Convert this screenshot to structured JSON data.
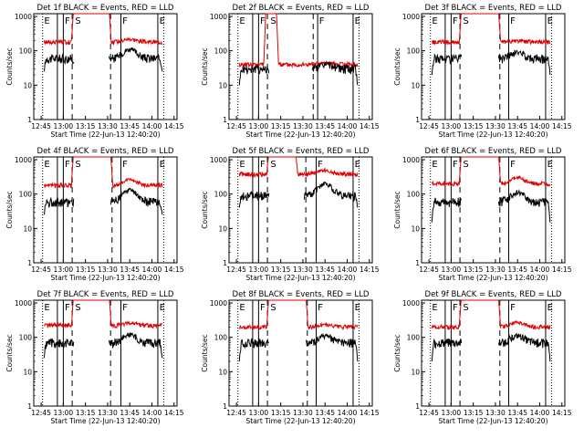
{
  "colors": {
    "events": "#000000",
    "lld": "#e00000",
    "axis": "#000000",
    "background": "#ffffff"
  },
  "common": {
    "xticks": [
      "12:45",
      "13:00",
      "13:15",
      "13:30",
      "13:45",
      "14:00",
      "14:15"
    ],
    "yticks": [
      "1",
      "10",
      "100",
      "1000"
    ],
    "ylabel": "Counts/sec",
    "xlabel": "Start Time (22-Jun-13 12:40:20)",
    "xlim": [
      "12:40",
      "14:17"
    ],
    "ylim": [
      1,
      1200
    ],
    "yscale": "log",
    "marker_labels": [
      "E",
      "F",
      "S",
      "F",
      "E"
    ]
  },
  "chart_data": [
    {
      "type": "line",
      "title": "Det 1f BLACK = Events, RED = LLD",
      "mark_times": [
        "12:46",
        "12:56",
        "13:00",
        "13:06",
        "13:32",
        "13:39",
        "14:04",
        "14:08"
      ],
      "base_events": 60,
      "base_lld": 180,
      "events_peak": 110,
      "lld_peak": 220,
      "lld_sat_start": "13:07",
      "lld_sat_end": "13:31",
      "events_drop": 25
    },
    {
      "type": "line",
      "title": "Det 2f BLACK = Events, RED = LLD",
      "mark_times": [
        "12:46",
        "12:56",
        "13:00",
        "13:06",
        "13:37",
        "13:40",
        "14:04",
        "14:08"
      ],
      "base_events": 30,
      "base_lld": 40,
      "events_peak": 40,
      "lld_peak": 45,
      "lld_sat_start": "13:05",
      "lld_sat_end": "13:12",
      "events_drop": 10
    },
    {
      "type": "line",
      "title": "Det 3f BLACK = Events, RED = LLD",
      "mark_times": [
        "12:46",
        "12:56",
        "13:00",
        "13:06",
        "13:33",
        "13:39",
        "14:04",
        "14:08"
      ],
      "base_events": 60,
      "base_lld": 180,
      "events_peak": 90,
      "lld_peak": 190,
      "lld_sat_start": "13:07",
      "lld_sat_end": "13:32",
      "events_drop": 20
    },
    {
      "type": "line",
      "title": "Det 4f BLACK = Events, RED = LLD",
      "mark_times": [
        "12:46",
        "12:56",
        "13:00",
        "13:06",
        "13:33",
        "13:39",
        "14:04",
        "14:08"
      ],
      "base_events": 60,
      "base_lld": 180,
      "events_peak": 130,
      "lld_peak": 260,
      "lld_sat_start": "13:07",
      "lld_sat_end": "13:32",
      "events_drop": 25
    },
    {
      "type": "line",
      "title": "Det 5f BLACK = Events, RED = LLD",
      "mark_times": [
        "12:46",
        "12:56",
        "13:00",
        "13:06",
        "13:32",
        "13:39",
        "14:04",
        "14:08"
      ],
      "base_events": 90,
      "base_lld": 380,
      "events_peak": 200,
      "lld_peak": 500,
      "lld_sat_start": "13:07",
      "lld_sat_end": "13:25",
      "events_drop": 40
    },
    {
      "type": "line",
      "title": "Det 6f BLACK = Events, RED = LLD",
      "mark_times": [
        "12:46",
        "12:56",
        "13:00",
        "13:06",
        "13:33",
        "13:39",
        "14:04",
        "14:08"
      ],
      "base_events": 60,
      "base_lld": 200,
      "events_peak": 110,
      "lld_peak": 300,
      "lld_sat_start": "13:07",
      "lld_sat_end": "13:32",
      "events_drop": 15
    },
    {
      "type": "line",
      "title": "Det 7f BLACK = Events, RED = LLD",
      "mark_times": [
        "12:46",
        "12:56",
        "13:00",
        "13:06",
        "13:32",
        "13:39",
        "14:04",
        "14:08"
      ],
      "base_events": 70,
      "base_lld": 220,
      "events_peak": 120,
      "lld_peak": 260,
      "lld_sat_start": "13:07",
      "lld_sat_end": "13:31",
      "events_drop": 25
    },
    {
      "type": "line",
      "title": "Det 8f BLACK = Events, RED = LLD",
      "mark_times": [
        "12:46",
        "12:56",
        "13:00",
        "13:06",
        "13:33",
        "13:39",
        "14:04",
        "14:08"
      ],
      "base_events": 70,
      "base_lld": 200,
      "events_peak": 110,
      "lld_peak": 230,
      "lld_sat_start": "13:07",
      "lld_sat_end": "13:32",
      "events_drop": 20
    },
    {
      "type": "line",
      "title": "Det 9f BLACK = Events, RED = LLD",
      "mark_times": [
        "12:46",
        "12:56",
        "13:00",
        "13:06",
        "13:33",
        "13:39",
        "14:04",
        "14:08"
      ],
      "base_events": 70,
      "base_lld": 200,
      "events_peak": 110,
      "lld_peak": 270,
      "lld_sat_start": "13:07",
      "lld_sat_end": "13:32",
      "events_drop": 20
    }
  ]
}
